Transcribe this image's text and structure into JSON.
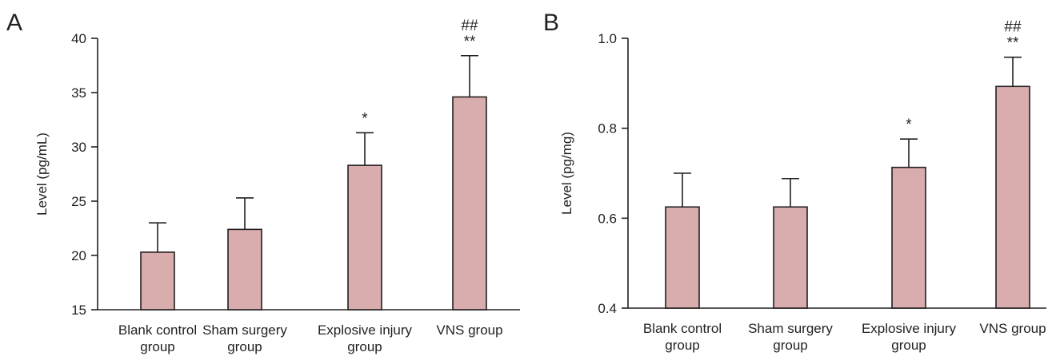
{
  "chart_data": [
    {
      "type": "bar",
      "panel_label": "A",
      "categories": [
        [
          "Blank control",
          "group"
        ],
        [
          "Sham surgery",
          "group"
        ],
        [
          "Explosive injury",
          "group"
        ],
        [
          "VNS group"
        ]
      ],
      "values": [
        20.3,
        22.4,
        28.3,
        34.6
      ],
      "errors": [
        2.7,
        2.9,
        3.0,
        3.8
      ],
      "significance": [
        [],
        [],
        [
          "*"
        ],
        [
          "##",
          "**"
        ]
      ],
      "ylabel": "Level (pg/mL)",
      "xlabel": "",
      "ylim": [
        15,
        40
      ],
      "yticks": [
        15,
        20,
        25,
        30,
        35,
        40
      ],
      "bar_color": "#d9adae",
      "grid": false
    },
    {
      "type": "bar",
      "panel_label": "B",
      "categories": [
        [
          "Blank control",
          "group"
        ],
        [
          "Sham surgery",
          "group"
        ],
        [
          "Explosive injury",
          "group"
        ],
        [
          "VNS group"
        ]
      ],
      "values": [
        0.625,
        0.625,
        0.713,
        0.893
      ],
      "errors": [
        0.075,
        0.063,
        0.063,
        0.065
      ],
      "significance": [
        [],
        [],
        [
          "*"
        ],
        [
          "##",
          "**"
        ]
      ],
      "ylabel": "Level (pg/mg)",
      "xlabel": "",
      "ylim": [
        0.4,
        1.0
      ],
      "yticks": [
        "0.4",
        "0.6",
        "0.8",
        "1.0"
      ],
      "bar_color": "#d9adae",
      "grid": false
    }
  ]
}
